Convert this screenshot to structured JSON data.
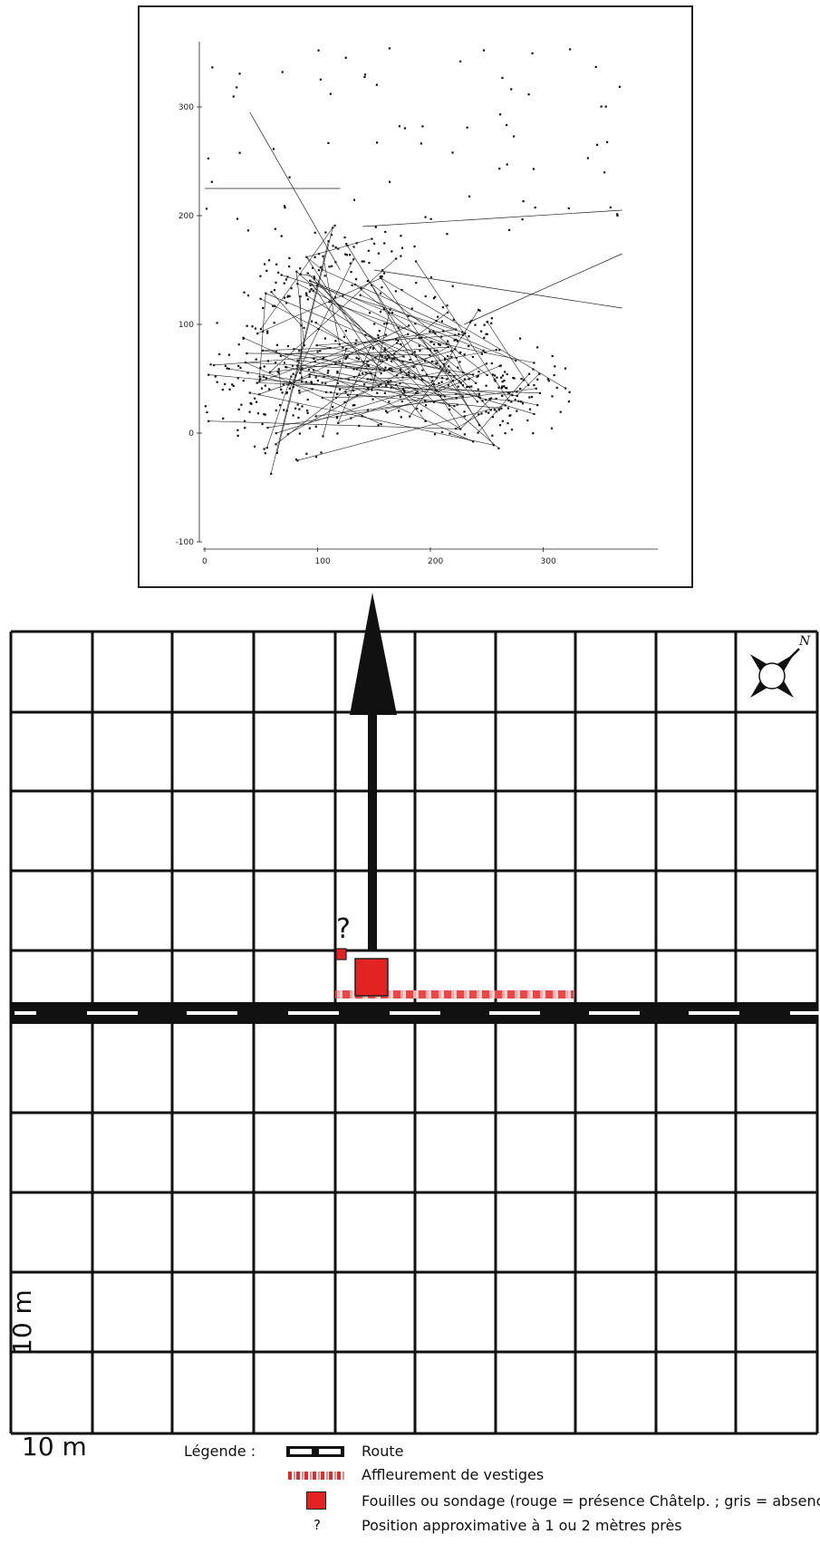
{
  "inset": {
    "x_ticks": [
      "0",
      "100",
      "200",
      "300"
    ],
    "y_ticks": [
      "300",
      "200",
      "100",
      "0",
      "-100"
    ]
  },
  "map": {
    "scale_x_label": "10 m",
    "scale_y_label": "10 m",
    "approx_position_mark": "?",
    "colors": {
      "excavation": "#e32222",
      "road": "#111111",
      "outcrop": "#e22a2a",
      "grid": "#111111"
    }
  },
  "legend": {
    "title": "Légende :",
    "items": [
      {
        "symbol": "route-icon",
        "label": "Route"
      },
      {
        "symbol": "outcrop-icon",
        "label": "Affleurement de vestiges"
      },
      {
        "symbol": "excavation-icon",
        "label": "Fouilles ou sondage (rouge = présence Châtelp. ; gris = absence)"
      },
      {
        "symbol": "question-mark",
        "label": "?",
        "text": "Position approximative à 1 ou 2 mètres près"
      }
    ]
  }
}
